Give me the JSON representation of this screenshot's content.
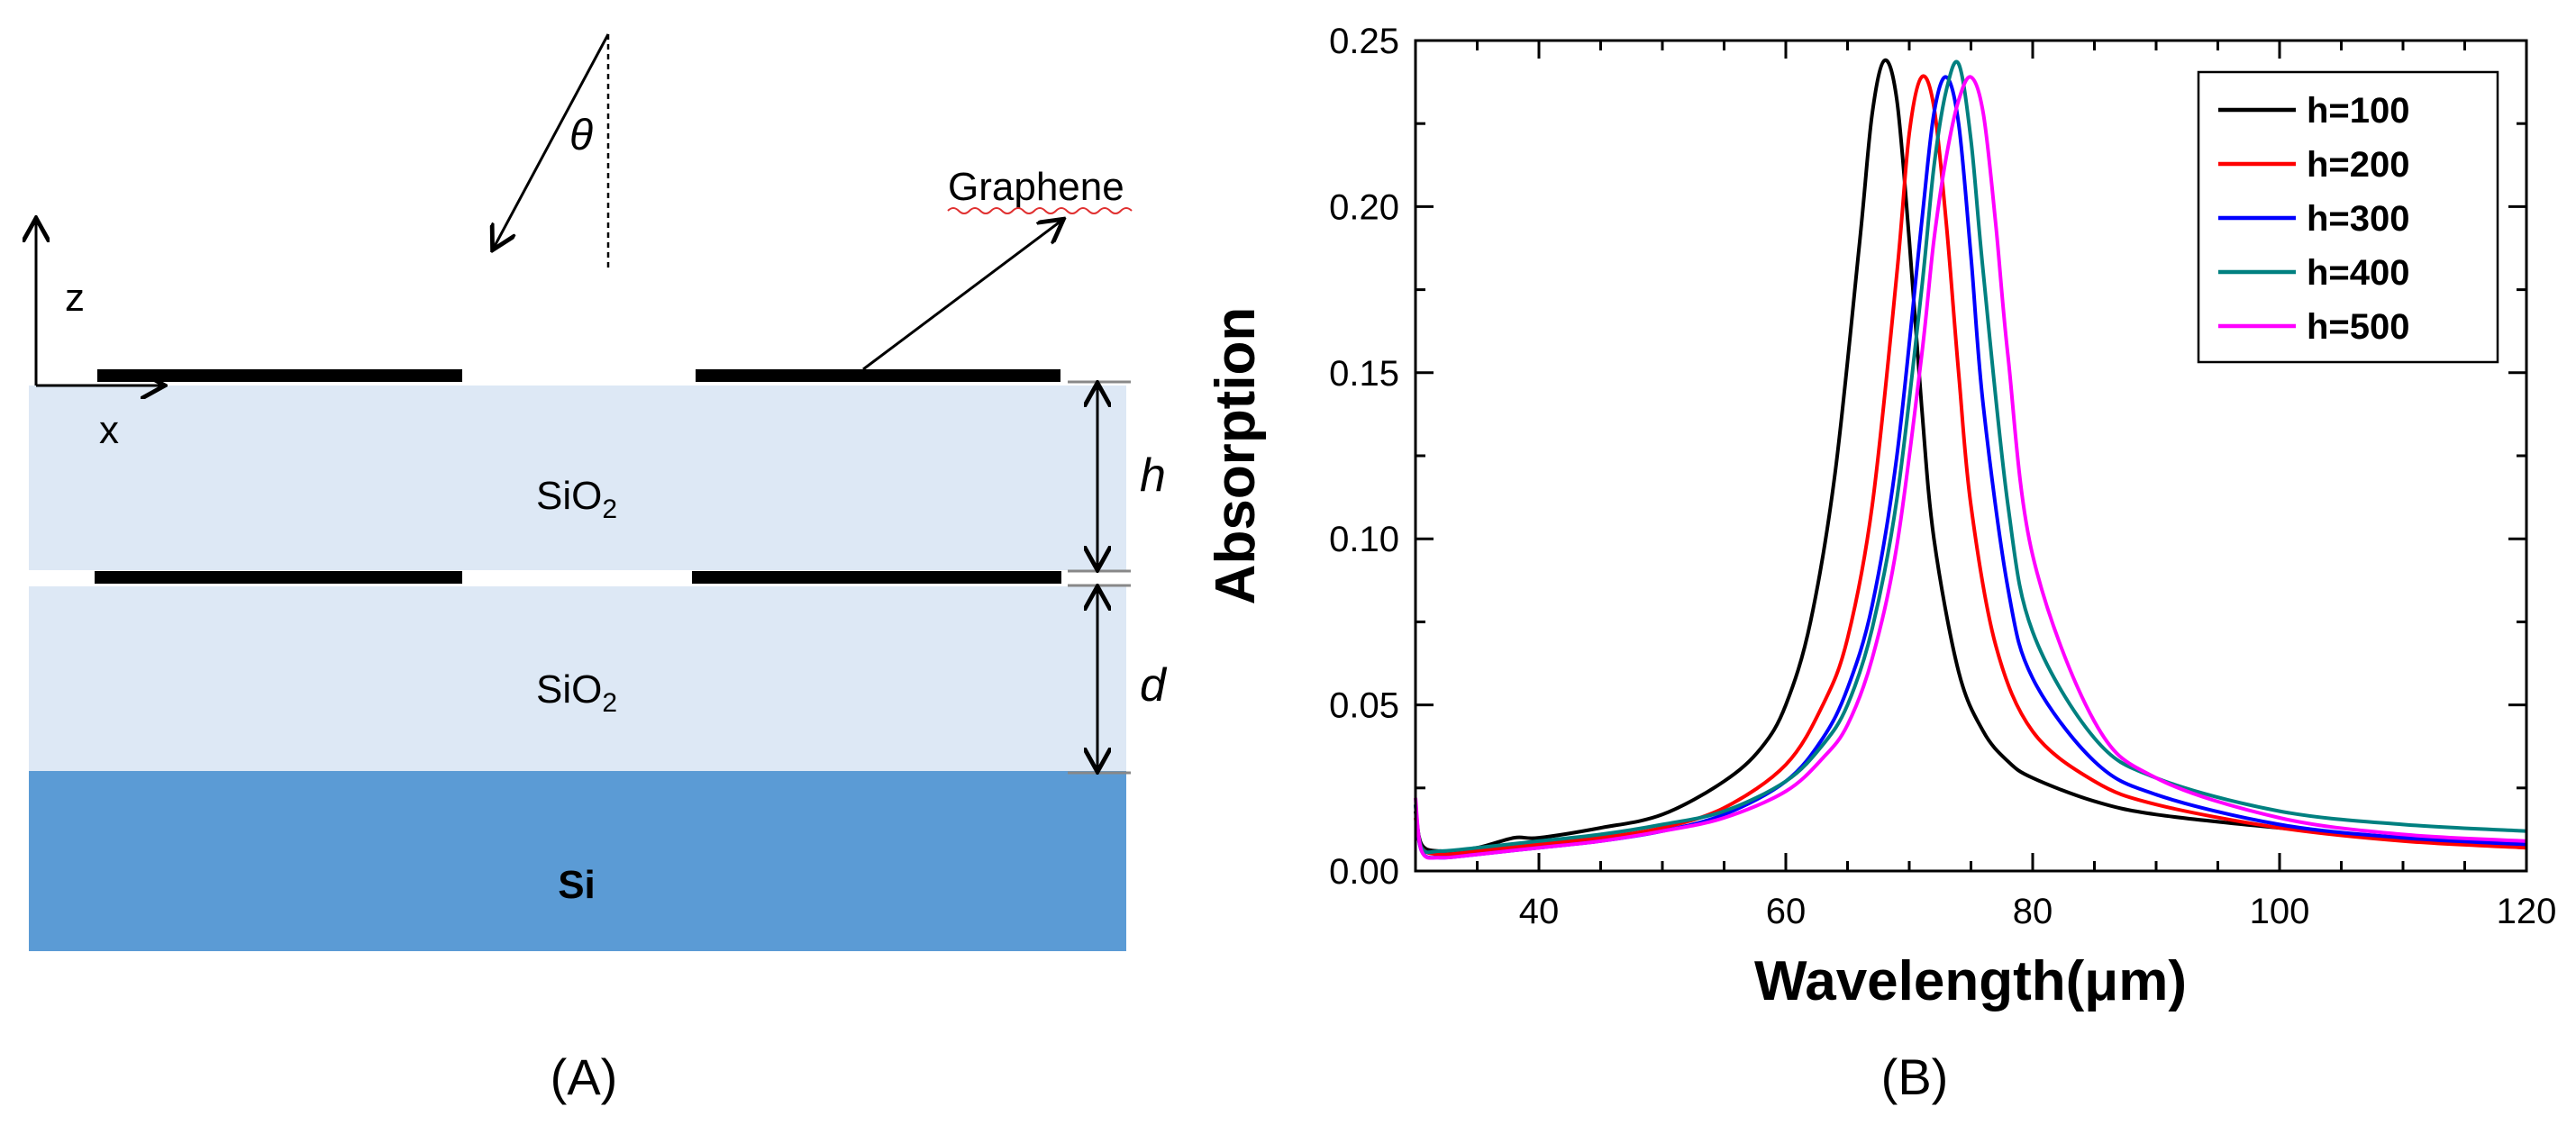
{
  "panel_a": {
    "caption": "(A)",
    "graphene_label": "Graphene",
    "theta_label": "θ",
    "z_label": "z",
    "x_label": "x",
    "h_label": "h",
    "d_label": "d",
    "layers": [
      {
        "name": "SiO",
        "sub": "2"
      },
      {
        "name": "SiO",
        "sub": "2"
      },
      {
        "name": "Si",
        "sub": ""
      }
    ],
    "colors": {
      "sio2": "#dde8f5",
      "si": "#5b9bd5",
      "graphene": "#000000"
    }
  },
  "panel_b": {
    "caption": "(B)"
  },
  "chart_data": {
    "type": "line",
    "xlabel": "Wavelength(μm)",
    "ylabel": "Absorption",
    "xlim": [
      30,
      120
    ],
    "ylim": [
      0,
      0.25
    ],
    "xticks": [
      40,
      60,
      80,
      100,
      120
    ],
    "yticks": [
      0.0,
      0.05,
      0.1,
      0.15,
      0.2,
      0.25
    ],
    "ytick_labels": [
      "0.00",
      "0.05",
      "0.10",
      "0.15",
      "0.20",
      "0.25"
    ],
    "legend_position": "top-right",
    "series": [
      {
        "name": "h=100",
        "color": "#000000",
        "x": [
          30,
          30.5,
          32,
          35,
          38,
          40,
          45,
          50,
          55,
          58,
          60,
          62,
          64,
          66,
          67,
          68,
          69,
          70,
          71,
          72,
          74,
          76,
          78,
          80,
          85,
          90,
          100,
          110,
          120
        ],
        "y": [
          0.018,
          0.008,
          0.006,
          0.007,
          0.01,
          0.01,
          0.013,
          0.017,
          0.027,
          0.037,
          0.05,
          0.075,
          0.12,
          0.19,
          0.228,
          0.244,
          0.232,
          0.19,
          0.14,
          0.1,
          0.06,
          0.042,
          0.033,
          0.028,
          0.021,
          0.017,
          0.013,
          0.01,
          0.008
        ]
      },
      {
        "name": "h=200",
        "color": "#ff0000",
        "x": [
          30,
          30.5,
          32,
          35,
          40,
          45,
          50,
          55,
          60,
          63,
          65,
          67,
          69,
          70,
          71,
          72,
          73,
          74,
          75,
          77,
          80,
          85,
          90,
          100,
          110,
          120
        ],
        "y": [
          0.016,
          0.007,
          0.005,
          0.006,
          0.008,
          0.01,
          0.013,
          0.019,
          0.032,
          0.05,
          0.07,
          0.11,
          0.18,
          0.222,
          0.239,
          0.23,
          0.195,
          0.15,
          0.11,
          0.068,
          0.042,
          0.027,
          0.02,
          0.013,
          0.009,
          0.007
        ]
      },
      {
        "name": "h=300",
        "color": "#0000ff",
        "x": [
          30,
          30.5,
          32,
          35,
          40,
          45,
          50,
          55,
          60,
          63,
          65,
          67,
          69,
          71,
          72,
          73,
          74,
          75,
          76,
          78,
          80,
          85,
          90,
          100,
          110,
          120
        ],
        "y": [
          0.02,
          0.006,
          0.004,
          0.005,
          0.007,
          0.009,
          0.012,
          0.017,
          0.027,
          0.04,
          0.055,
          0.08,
          0.125,
          0.195,
          0.228,
          0.239,
          0.225,
          0.185,
          0.14,
          0.085,
          0.058,
          0.033,
          0.023,
          0.014,
          0.01,
          0.008
        ]
      },
      {
        "name": "h=400",
        "color": "#008080",
        "x": [
          30,
          30.5,
          32,
          35,
          40,
          45,
          50,
          55,
          60,
          63,
          65,
          67,
          69,
          71,
          72,
          73,
          74,
          75,
          76,
          78,
          80,
          85,
          90,
          100,
          110,
          120
        ],
        "y": [
          0.02,
          0.007,
          0.006,
          0.007,
          0.009,
          0.011,
          0.014,
          0.018,
          0.027,
          0.038,
          0.05,
          0.073,
          0.112,
          0.175,
          0.212,
          0.235,
          0.243,
          0.22,
          0.18,
          0.11,
          0.072,
          0.04,
          0.028,
          0.018,
          0.014,
          0.012
        ]
      },
      {
        "name": "h=500",
        "color": "#ff00ff",
        "x": [
          30,
          30.5,
          32,
          35,
          40,
          45,
          50,
          55,
          60,
          63,
          65,
          67,
          69,
          71,
          72,
          73,
          74,
          75,
          76,
          77,
          78,
          80,
          85,
          90,
          100,
          110,
          120
        ],
        "y": [
          0.022,
          0.006,
          0.004,
          0.005,
          0.007,
          0.009,
          0.012,
          0.016,
          0.024,
          0.034,
          0.044,
          0.064,
          0.098,
          0.155,
          0.19,
          0.215,
          0.232,
          0.239,
          0.228,
          0.195,
          0.155,
          0.095,
          0.045,
          0.028,
          0.016,
          0.011,
          0.009
        ]
      }
    ]
  }
}
